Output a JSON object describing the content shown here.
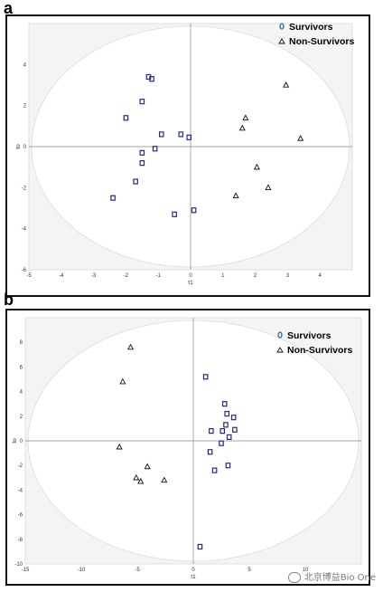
{
  "panels": [
    {
      "label": "a",
      "xlabel": "t1",
      "ylabel": "to",
      "xlim": [
        -5,
        5
      ],
      "ylim": [
        -6,
        6
      ],
      "xticks": [
        -5,
        -4,
        -3,
        -2,
        -1,
        0,
        1,
        2,
        3,
        4
      ],
      "yticks": [
        -6,
        -4,
        -2,
        0,
        2,
        4
      ],
      "legend": [
        "Survivors",
        "Non-Survivors"
      ]
    },
    {
      "label": "b",
      "xlabel": "t1",
      "ylabel": "to",
      "xlim": [
        -15,
        15
      ],
      "ylim": [
        -10,
        10
      ],
      "xticks": [
        -15,
        -10,
        -5,
        0,
        5,
        10
      ],
      "yticks": [
        -10,
        -8,
        -6,
        -4,
        -2,
        0,
        2,
        4,
        6,
        8
      ],
      "legend": [
        "Survivors",
        "Non-Survivors"
      ]
    }
  ],
  "chart_data": [
    {
      "type": "scatter",
      "title": "a",
      "xlabel": "t1",
      "ylabel": "to",
      "xlim": [
        -5,
        5
      ],
      "ylim": [
        -6,
        6
      ],
      "grid": false,
      "ellipse": true,
      "legend_position": "top-right",
      "series": [
        {
          "name": "Survivors",
          "marker": "square",
          "color": "#1f2a8c",
          "points": [
            [
              -1.3,
              3.4
            ],
            [
              -1.2,
              3.3
            ],
            [
              -1.5,
              2.2
            ],
            [
              -2.0,
              1.4
            ],
            [
              -0.9,
              0.6
            ],
            [
              -0.3,
              0.6
            ],
            [
              -0.05,
              0.45
            ],
            [
              -1.1,
              -0.1
            ],
            [
              -1.5,
              -0.3
            ],
            [
              -1.5,
              -0.8
            ],
            [
              -1.7,
              -1.7
            ],
            [
              -2.4,
              -2.5
            ],
            [
              -0.5,
              -3.3
            ],
            [
              0.1,
              -3.1
            ]
          ]
        },
        {
          "name": "Non-Survivors",
          "marker": "triangle",
          "color": "#111111",
          "points": [
            [
              2.95,
              3.0
            ],
            [
              1.7,
              1.4
            ],
            [
              1.6,
              0.9
            ],
            [
              3.4,
              0.4
            ],
            [
              2.05,
              -1.0
            ],
            [
              2.4,
              -2.0
            ],
            [
              1.4,
              -2.4
            ]
          ]
        }
      ]
    },
    {
      "type": "scatter",
      "title": "b",
      "xlabel": "t1",
      "ylabel": "to",
      "xlim": [
        -15,
        15
      ],
      "ylim": [
        -10,
        10
      ],
      "grid": false,
      "ellipse": true,
      "legend_position": "top-right",
      "series": [
        {
          "name": "Survivors",
          "marker": "square",
          "color": "#1f2a8c",
          "points": [
            [
              1.1,
              5.2
            ],
            [
              2.8,
              3.0
            ],
            [
              3.0,
              2.2
            ],
            [
              3.6,
              1.9
            ],
            [
              2.9,
              1.3
            ],
            [
              1.6,
              0.8
            ],
            [
              2.6,
              0.8
            ],
            [
              3.7,
              0.9
            ],
            [
              3.2,
              0.3
            ],
            [
              2.5,
              -0.2
            ],
            [
              1.5,
              -0.9
            ],
            [
              3.1,
              -2.0
            ],
            [
              1.9,
              -2.4
            ],
            [
              0.6,
              -8.6
            ]
          ]
        },
        {
          "name": "Non-Survivors",
          "marker": "triangle",
          "color": "#111111",
          "points": [
            [
              -5.6,
              7.6
            ],
            [
              -6.3,
              4.8
            ],
            [
              -6.6,
              -0.5
            ],
            [
              -4.1,
              -2.1
            ],
            [
              -5.1,
              -3.0
            ],
            [
              -4.7,
              -3.3
            ],
            [
              -2.6,
              -3.2
            ]
          ]
        }
      ]
    }
  ],
  "watermark": "北京博益Bio One"
}
